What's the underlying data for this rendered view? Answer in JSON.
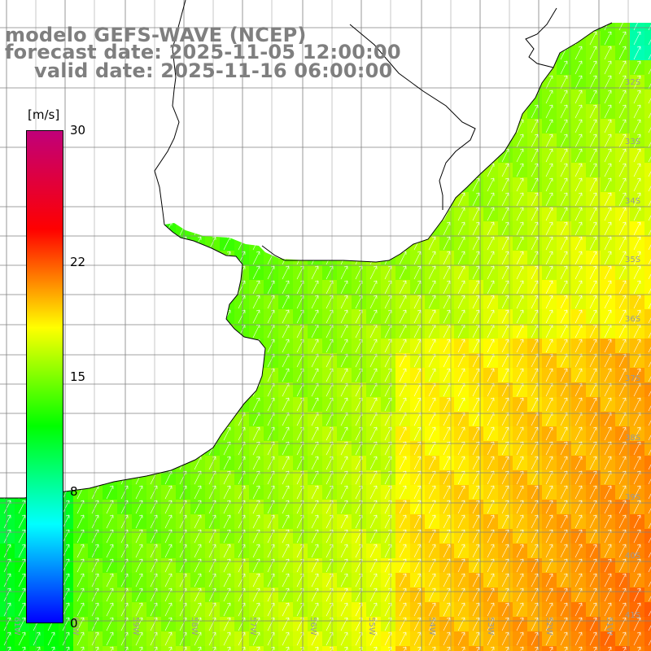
{
  "title": {
    "line1": "modelo GEFS-WAVE (NCEP)",
    "line2": "forecast date: 2025-11-05 12:00:00",
    "line3": "valid date: 2025-11-16 06:00:00"
  },
  "colorbar": {
    "unit": "[m/s]",
    "ticks": [
      {
        "label": "30",
        "value": 30
      },
      {
        "label": "22",
        "value": 22
      },
      {
        "label": "15",
        "value": 15
      },
      {
        "label": "8",
        "value": 8
      },
      {
        "label": "0",
        "value": 0
      }
    ],
    "colors": [
      "#0000ff",
      "#00ffff",
      "#00ff00",
      "#ffff00",
      "#ff0000",
      "#c0007a"
    ]
  },
  "axes": {
    "lon_labels": [
      "61W",
      "60W",
      "59W",
      "58W",
      "57W",
      "56W",
      "55W",
      "54W",
      "53W",
      "52W",
      "51W"
    ],
    "lat_labels": [
      "32S",
      "33S",
      "34S",
      "35S",
      "36S",
      "37S",
      "38S",
      "39S",
      "40S",
      "41S"
    ]
  }
}
